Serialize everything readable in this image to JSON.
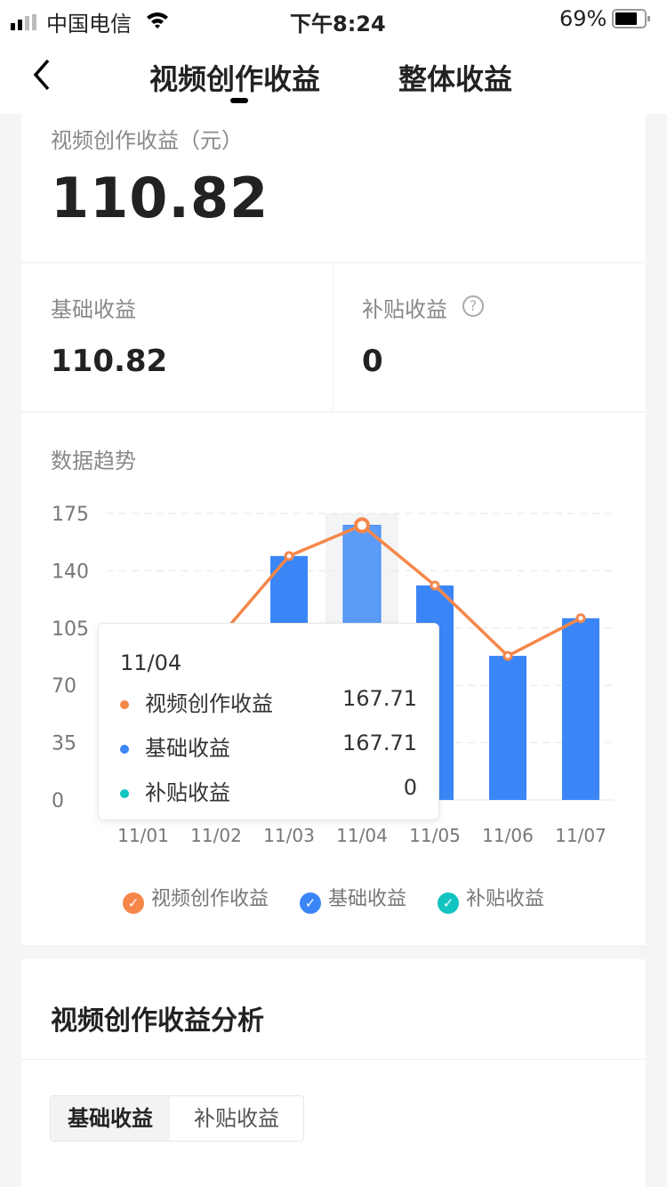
{
  "status_bar": {
    "carrier": "中国电信",
    "time": "下午8:24",
    "battery": "69%"
  },
  "nav": {
    "tabs": [
      {
        "label": "视频创作收益",
        "active": true
      },
      {
        "label": "整体收益",
        "active": false
      }
    ]
  },
  "summary": {
    "label": "视频创作收益（元）",
    "value": "110.82"
  },
  "breakdown": [
    {
      "label": "基础收益",
      "value": "110.82"
    },
    {
      "label": "补贴收益",
      "value": "0"
    }
  ],
  "trend": {
    "title": "数据趋势"
  },
  "tooltip": {
    "date": "11/04",
    "rows": [
      {
        "label": "视频创作收益",
        "value": "167.71",
        "color": "#f5874a"
      },
      {
        "label": "基础收益",
        "value": "167.71",
        "color": "#3b86f7"
      },
      {
        "label": "补贴收益",
        "value": "0",
        "color": "#12c4c1"
      }
    ]
  },
  "chart_data": {
    "type": "bar+line",
    "categories": [
      "11/01",
      "11/02",
      "11/03",
      "11/04",
      "11/05",
      "11/06",
      "11/07"
    ],
    "yticks": [
      "0",
      "35",
      "70",
      "105",
      "140",
      "175"
    ],
    "ylim": [
      0,
      175
    ],
    "grid": true,
    "legend_placement": "bottom",
    "highlighted": "11/04",
    "series": [
      {
        "name": "视频创作收益",
        "type": "line",
        "color": "#f5874a",
        "values": [
          null,
          97,
          149,
          167.71,
          131,
          88,
          111
        ]
      },
      {
        "name": "基础收益",
        "type": "bar",
        "color": "#3b86f7",
        "values": [
          null,
          97,
          149,
          167.71,
          131,
          88,
          111
        ]
      },
      {
        "name": "补贴收益",
        "type": "bar",
        "color": "#12c4c1",
        "values": [
          null,
          0,
          0,
          0,
          0,
          0,
          0
        ]
      }
    ]
  },
  "analysis": {
    "title": "视频创作收益分析",
    "tabs": [
      {
        "label": "基础收益",
        "active": true
      },
      {
        "label": "补贴收益",
        "active": false
      }
    ]
  }
}
